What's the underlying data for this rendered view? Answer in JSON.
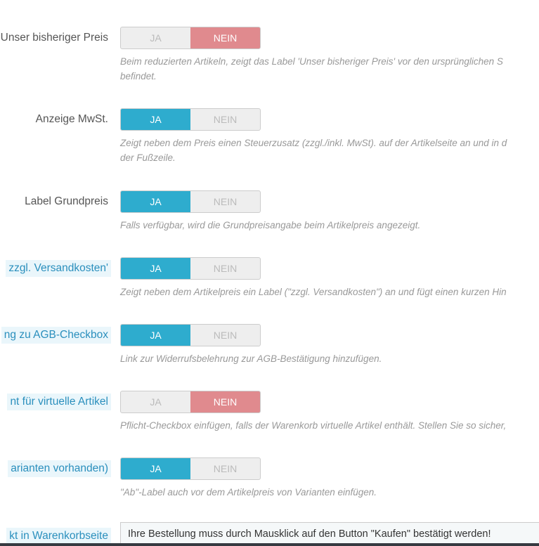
{
  "rows": [
    {
      "label": "Unser bisheriger Preis",
      "tip": false,
      "yes": "JA",
      "no": "NEIN",
      "selected": "no",
      "help": [
        "Beim reduzierten Artikeln, zeigt das Label 'Unser bisheriger Preis' vor den ursprünglichen S",
        "befindet."
      ]
    },
    {
      "label": "Anzeige MwSt.",
      "tip": false,
      "yes": "JA",
      "no": "NEIN",
      "selected": "yes",
      "help": [
        "Zeigt neben dem Preis einen Steuerzusatz (zzgl./inkl. MwSt). auf der Artikelseite an und in d",
        "der Fußzeile."
      ]
    },
    {
      "label": "Label Grundpreis",
      "tip": false,
      "yes": "JA",
      "no": "NEIN",
      "selected": "yes",
      "help": [
        "Falls verfügbar, wird die Grundpreisangabe beim Artikelpreis angezeigt."
      ]
    },
    {
      "label": "zzgl. Versandkosten'",
      "tip": true,
      "yes": "JA",
      "no": "NEIN",
      "selected": "yes",
      "help": [
        "Zeigt neben dem Artikelpreis ein Label (\"zzgl. Versandkosten\") an und fügt einen kurzen Hin"
      ]
    },
    {
      "label": "ng zu AGB-Checkbox",
      "tip": true,
      "yes": "JA",
      "no": "NEIN",
      "selected": "yes",
      "help": [
        "Link zur Widerrufsbelehrung zur AGB-Bestätigung hinzufügen."
      ]
    },
    {
      "label": "nt für virtuelle Artikel",
      "tip": true,
      "yes": "JA",
      "no": "NEIN",
      "selected": "no",
      "help": [
        "Pflicht-Checkbox einfügen, falls der Warenkorb virtuelle Artikel enthält. Stellen Sie so sicher,"
      ]
    },
    {
      "label": "arianten vorhanden)",
      "tip": true,
      "yes": "JA",
      "no": "NEIN",
      "selected": "yes",
      "help": [
        "\"Ab\"-Label auch vor dem Artikelpreis von Varianten einfügen."
      ]
    }
  ],
  "last": {
    "label": "kt in Warenkorbseite",
    "input": "Ihre Bestellung muss durch Mausklick auf den Button \"Kaufen\" bestätigt werden!"
  }
}
